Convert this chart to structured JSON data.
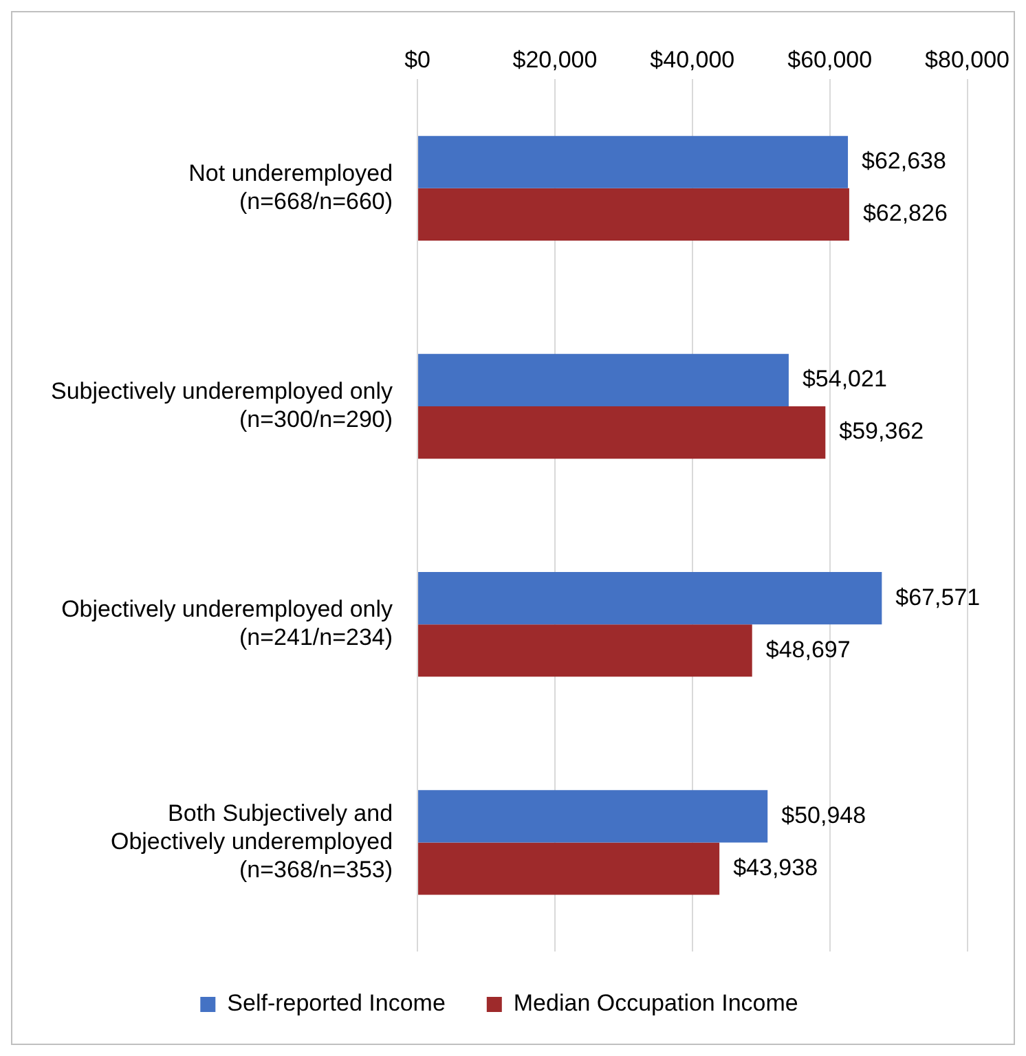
{
  "chart_data": {
    "type": "bar",
    "orientation": "horizontal",
    "categories": [
      "Not underemployed\n(n=668/n=660)",
      "Subjectively underemployed only\n(n=300/n=290)",
      "Objectively underemployed only\n(n=241/n=234)",
      "Both Subjectively and\nObjectively underemployed\n(n=368/n=353)"
    ],
    "series": [
      {
        "name": "Self-reported Income",
        "color": "#4472c4",
        "values": [
          62638,
          54021,
          67571,
          50948
        ],
        "value_labels": [
          "$62,638",
          "$54,021",
          "$67,571",
          "$50,948"
        ]
      },
      {
        "name": "Median Occupation Income",
        "color": "#9e2a2b",
        "values": [
          62826,
          59362,
          48697,
          43938
        ],
        "value_labels": [
          "$62,826",
          "$59,362",
          "$48,697",
          "$43,938"
        ]
      }
    ],
    "xlim": [
      0,
      80000
    ],
    "xticks": [
      {
        "value": 0,
        "label": "$0"
      },
      {
        "value": 20000,
        "label": "$20,000"
      },
      {
        "value": 40000,
        "label": "$40,000"
      },
      {
        "value": 60000,
        "label": "$60,000"
      },
      {
        "value": 80000,
        "label": "$80,000"
      }
    ],
    "grid": "x",
    "legend": "bottom"
  }
}
